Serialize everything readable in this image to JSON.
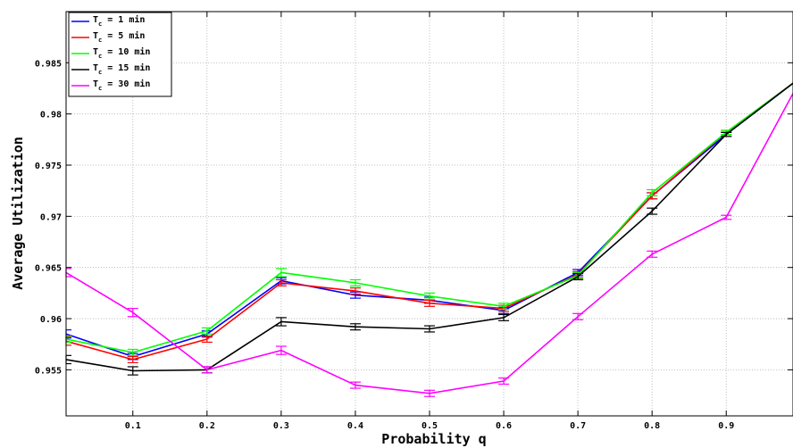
{
  "chart_data": {
    "type": "line",
    "title": "",
    "xlabel": "Probability q",
    "ylabel": "Average Utilization",
    "xlim": [
      0.01,
      0.99
    ],
    "ylim": [
      0.9505,
      0.99
    ],
    "x": [
      0.01,
      0.1,
      0.2,
      0.3,
      0.4,
      0.5,
      0.6,
      0.7,
      0.8,
      0.9,
      0.99
    ],
    "x_ticks": [
      {
        "value": 0.1,
        "label": "0.1"
      },
      {
        "value": 0.2,
        "label": "0.2"
      },
      {
        "value": 0.3,
        "label": "0.3"
      },
      {
        "value": 0.4,
        "label": "0.4"
      },
      {
        "value": 0.5,
        "label": "0.5"
      },
      {
        "value": 0.6,
        "label": "0.6"
      },
      {
        "value": 0.7,
        "label": "0.7"
      },
      {
        "value": 0.8,
        "label": "0.8"
      },
      {
        "value": 0.9,
        "label": "0.9"
      }
    ],
    "y_ticks": [
      {
        "value": 0.955,
        "label": "0.955"
      },
      {
        "value": 0.96,
        "label": "0.96"
      },
      {
        "value": 0.965,
        "label": "0.965"
      },
      {
        "value": 0.97,
        "label": "0.97"
      },
      {
        "value": 0.975,
        "label": "0.975"
      },
      {
        "value": 0.98,
        "label": "0.98"
      },
      {
        "value": 0.985,
        "label": "0.985"
      }
    ],
    "grid": true,
    "legend_position": "top-left",
    "series": [
      {
        "name": "T",
        "sub": "c",
        "suffix": " = 1 min",
        "color": "#0000ff",
        "values": [
          0.9585,
          0.9563,
          0.9585,
          0.9637,
          0.9623,
          0.9618,
          0.9608,
          0.9645,
          0.972,
          0.978,
          0.983
        ],
        "errors": [
          0.0004,
          0.0003,
          0.0003,
          0.0003,
          0.0003,
          0.0003,
          0.0003,
          0.0003,
          0.0003,
          0.0002,
          0.0002
        ]
      },
      {
        "name": "T",
        "sub": "c",
        "suffix": " = 5 min",
        "color": "#ff0000",
        "values": [
          0.9578,
          0.956,
          0.958,
          0.9635,
          0.9627,
          0.9615,
          0.961,
          0.9643,
          0.972,
          0.9782,
          0.983
        ],
        "errors": [
          0.0004,
          0.0003,
          0.0003,
          0.0003,
          0.0003,
          0.0003,
          0.0003,
          0.0003,
          0.0003,
          0.0002,
          0.0002
        ]
      },
      {
        "name": "T",
        "sub": "c",
        "suffix": " = 10 min",
        "color": "#00ff00",
        "values": [
          0.958,
          0.9567,
          0.9588,
          0.9645,
          0.9635,
          0.9622,
          0.9612,
          0.9642,
          0.9723,
          0.9782,
          0.983
        ],
        "errors": [
          0.0003,
          0.0003,
          0.0003,
          0.0004,
          0.0003,
          0.0003,
          0.0003,
          0.0003,
          0.0003,
          0.0002,
          0.0002
        ]
      },
      {
        "name": "T",
        "sub": "c",
        "suffix": " = 15 min",
        "color": "#000000",
        "values": [
          0.956,
          0.9549,
          0.955,
          0.9597,
          0.9592,
          0.959,
          0.9601,
          0.9641,
          0.9705,
          0.978,
          0.983
        ],
        "errors": [
          0.0004,
          0.0004,
          0.0003,
          0.0004,
          0.0003,
          0.0003,
          0.0003,
          0.0003,
          0.0003,
          0.0002,
          0.0002
        ]
      },
      {
        "name": "T",
        "sub": "c",
        "suffix": " = 30 min",
        "color": "#ff00ff",
        "values": [
          0.9645,
          0.9606,
          0.955,
          0.9569,
          0.9535,
          0.9527,
          0.9539,
          0.9602,
          0.9663,
          0.9699,
          0.982
        ],
        "errors": [
          0.0004,
          0.0004,
          0.0003,
          0.0004,
          0.0003,
          0.0003,
          0.0003,
          0.0003,
          0.0003,
          0.0002,
          0.0002
        ]
      }
    ]
  }
}
